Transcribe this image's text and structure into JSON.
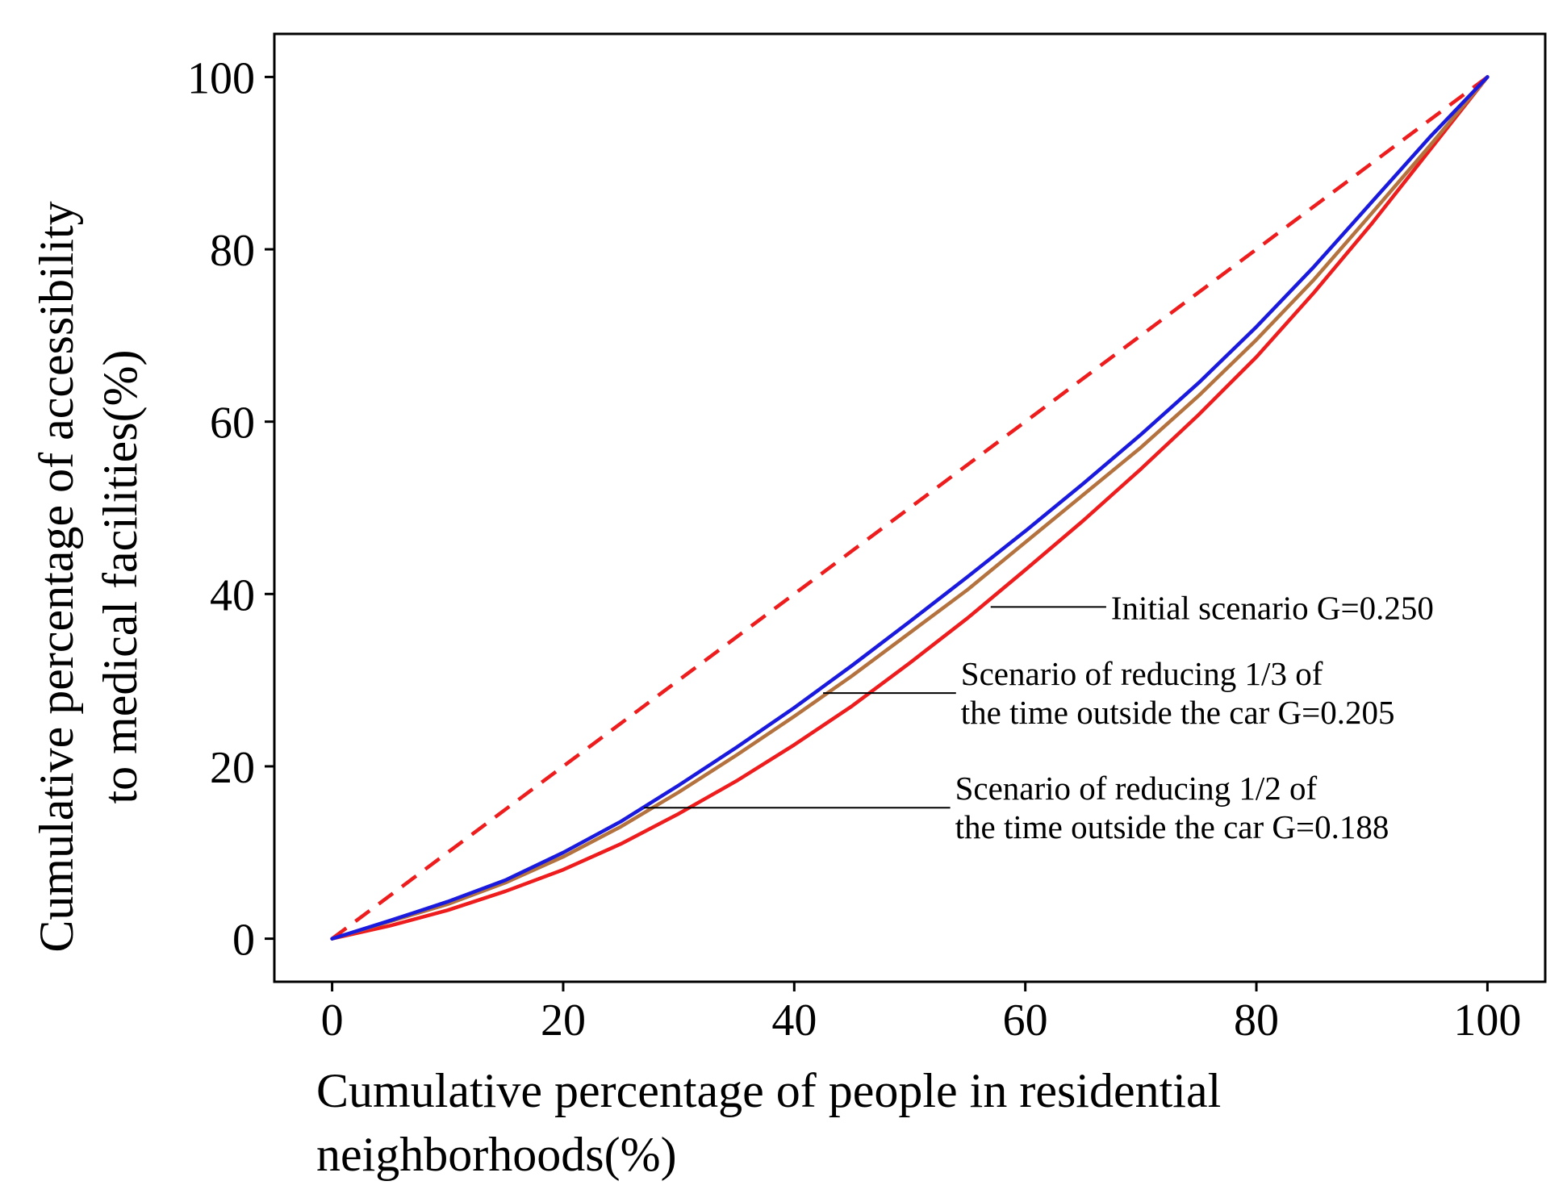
{
  "chart_data": {
    "type": "line",
    "title": "",
    "xlabel_lines": [
      "Cumulative percentage of people in residential",
      "neighborhoods(%)"
    ],
    "ylabel_lines": [
      "Cumulative percentage of accessibility",
      "to medical facilities(%)"
    ],
    "xlim": [
      -5,
      105
    ],
    "ylim": [
      -5,
      105
    ],
    "xticks": [
      0,
      20,
      40,
      60,
      80,
      100
    ],
    "yticks": [
      0,
      20,
      40,
      60,
      80,
      100
    ],
    "grid": false,
    "series": [
      {
        "name": "Equality line",
        "color": "#ee1c1c",
        "dashed": true,
        "x": [
          0,
          100
        ],
        "y": [
          0,
          100
        ]
      },
      {
        "name": "Initial scenario",
        "color": "#ee1c1c",
        "dashed": false,
        "x": [
          0,
          5,
          10,
          15,
          20,
          25,
          30,
          35,
          40,
          45,
          50,
          55,
          60,
          65,
          70,
          75,
          80,
          85,
          90,
          95,
          100
        ],
        "y": [
          0,
          1.5,
          3.3,
          5.5,
          8.0,
          11.0,
          14.5,
          18.3,
          22.5,
          27.0,
          32.0,
          37.2,
          42.8,
          48.5,
          54.5,
          60.8,
          67.5,
          75.0,
          83.0,
          91.5,
          100
        ]
      },
      {
        "name": "Scenario of reducing 1/3",
        "color": "#b4723f",
        "dashed": false,
        "x": [
          0,
          5,
          10,
          15,
          20,
          25,
          30,
          35,
          40,
          45,
          50,
          55,
          60,
          65,
          70,
          75,
          80,
          85,
          90,
          95,
          100
        ],
        "y": [
          0,
          2.0,
          4.0,
          6.5,
          9.5,
          13.0,
          17.0,
          21.3,
          25.8,
          30.5,
          35.5,
          40.5,
          46.0,
          51.5,
          57.0,
          63.0,
          69.5,
          76.5,
          84.2,
          92.0,
          100
        ]
      },
      {
        "name": "Scenario of reducing 1/2",
        "color": "#1a1adf",
        "dashed": false,
        "x": [
          0,
          5,
          10,
          15,
          20,
          25,
          30,
          35,
          40,
          45,
          50,
          55,
          60,
          65,
          70,
          75,
          80,
          85,
          90,
          95,
          100
        ],
        "y": [
          0,
          2.1,
          4.3,
          6.8,
          10.0,
          13.6,
          17.8,
          22.2,
          26.8,
          31.7,
          36.8,
          42.0,
          47.3,
          52.8,
          58.5,
          64.5,
          71.0,
          78.0,
          85.5,
          93.0,
          100
        ]
      }
    ],
    "annotations": [
      {
        "lines": [
          "Initial scenario G=0.250"
        ],
        "pointer_from": [
          57,
          38.5
        ],
        "pointer_to": [
          67,
          38.5
        ]
      },
      {
        "lines": [
          "Scenario of reducing 1/3 of",
          "the time outside the car G=0.205"
        ],
        "pointer_from": [
          42.5,
          28.5
        ],
        "pointer_to": [
          54,
          28.5
        ]
      },
      {
        "lines": [
          "Scenario of reducing 1/2 of",
          "the time outside the car  G=0.188"
        ],
        "pointer_from": [
          27,
          15.2
        ],
        "pointer_to": [
          53.5,
          15.2
        ]
      }
    ]
  }
}
